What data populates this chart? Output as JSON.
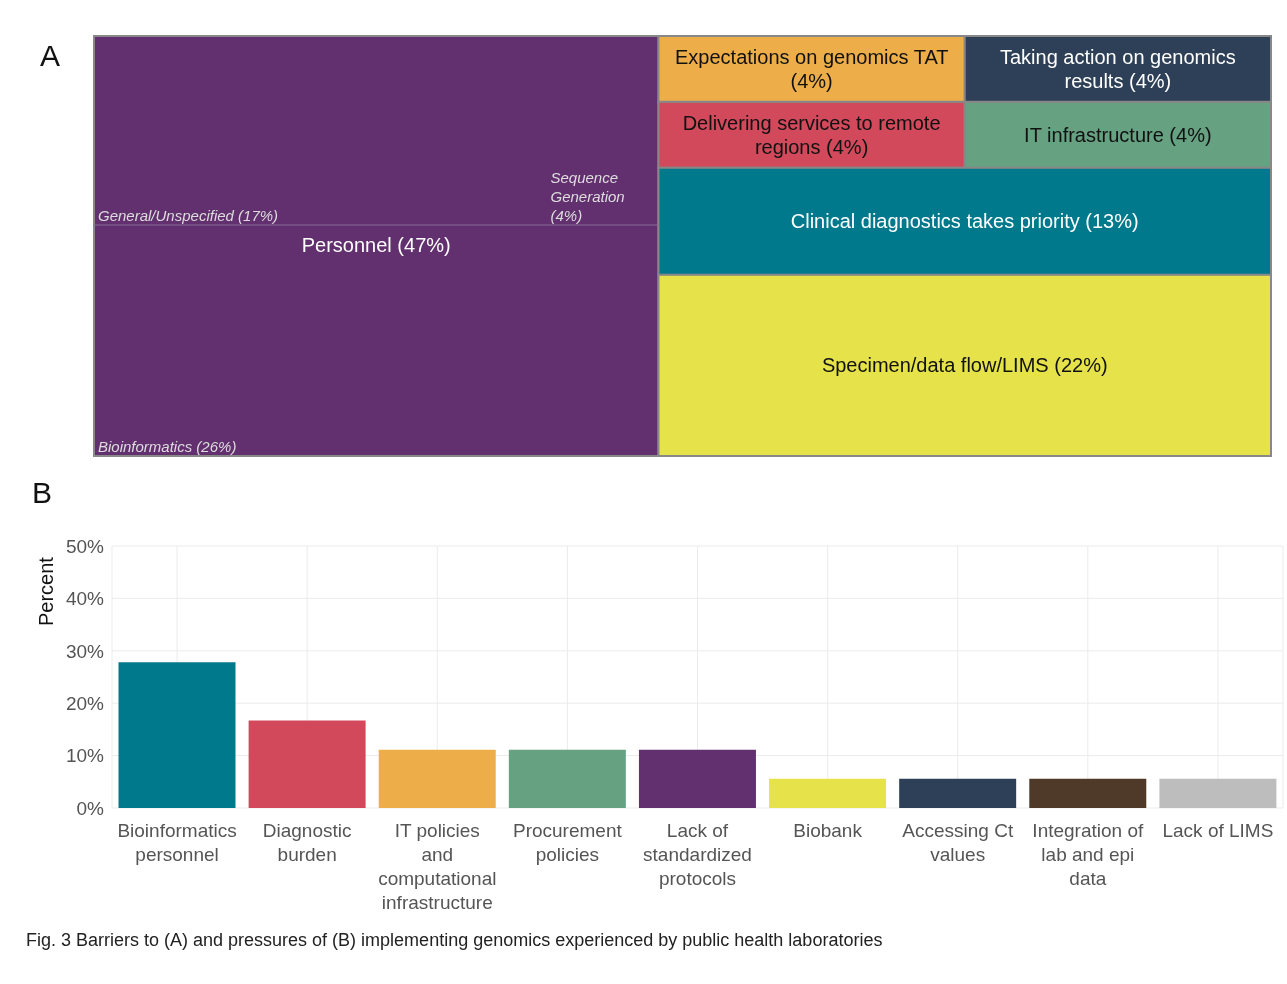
{
  "chart_data": [
    {
      "type": "other",
      "title": "A",
      "categories": [
        "Personnel",
        "Expectations on genomics TAT",
        "Taking action on genomics results",
        "Delivering services to remote regions",
        "IT infrastructure",
        "Clinical diagnostics takes priority",
        "Specimen/data flow/LIMS"
      ],
      "values": [
        47,
        4,
        4,
        4,
        4,
        13,
        22
      ],
      "value_labels": [
        "(47%)",
        "(4%)",
        "(4%)",
        "(4%)",
        "(4%)",
        "(13%)",
        "(22%)"
      ],
      "colors": [
        "#62306f",
        "#edae49",
        "#2e4057",
        "#d1495b",
        "#66a182",
        "#00798c",
        "#e6e34a"
      ],
      "annotations": [
        "General/Unspecified (17%)",
        "Sequence Generation (4%)",
        "Bioinformatics (26%)"
      ]
    },
    {
      "type": "bar",
      "title": "B",
      "ylabel": "Percent",
      "categories": [
        "Bioinformatics personnel",
        "Diagnostic burden",
        "IT policies and computational infrastructure",
        "Procurement policies",
        "Lack of standardized protocols",
        "Biobank",
        "Accessing Ct values",
        "Integration of lab and epi data",
        "Lack of LIMS"
      ],
      "values": [
        27.8,
        16.7,
        11.1,
        11.1,
        11.1,
        5.6,
        5.6,
        5.6,
        5.6
      ],
      "colors": [
        "#00798c",
        "#d1495b",
        "#edae49",
        "#66a182",
        "#62306f",
        "#e6e34a",
        "#2e4057",
        "#4f3a2a",
        "#bdbdbd"
      ],
      "ylim": [
        0,
        50
      ],
      "yticks": [
        {
          "value": 0,
          "label": "0%"
        },
        {
          "value": 10,
          "label": "10%"
        },
        {
          "value": 20,
          "label": "20%"
        },
        {
          "value": 30,
          "label": "30%"
        },
        {
          "value": 40,
          "label": "40%"
        },
        {
          "value": 50,
          "label": "50%"
        }
      ],
      "grid": true,
      "annotations": [
        "Fig. 3  Barriers to (A) and pressures of (B) implementing genomics experienced by public health laboratories"
      ]
    }
  ]
}
